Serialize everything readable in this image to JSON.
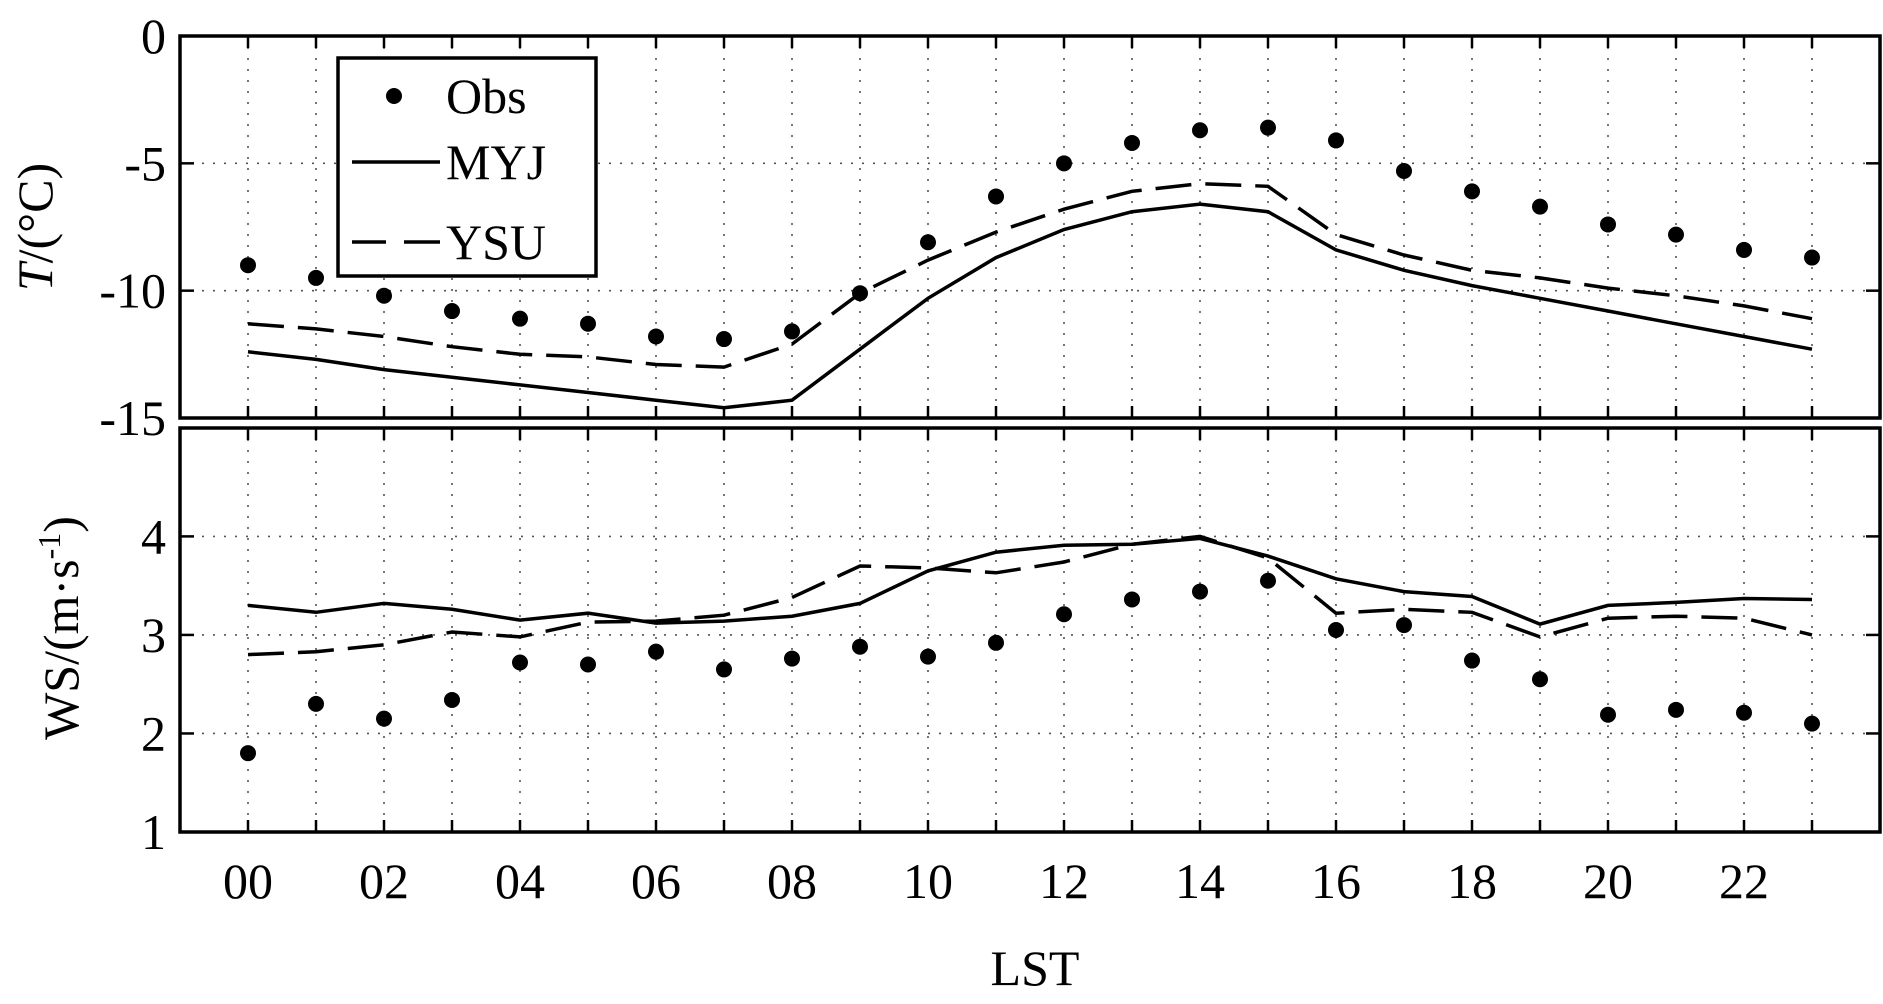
{
  "chart_data": [
    {
      "type": "line",
      "panel": "top",
      "ylabel_italic": "T",
      "ylabel_rest": "/(°C)",
      "xlabel": "",
      "ylim": [
        -15,
        0
      ],
      "yticks": [
        0,
        -5,
        -10,
        -15
      ],
      "ytick_labels": [
        "0",
        "-5",
        "-10",
        "-15"
      ],
      "grid": true,
      "legend_position": "top-left",
      "legend": [
        {
          "label": "Obs",
          "style": "dots"
        },
        {
          "label": "MYJ",
          "style": "solid"
        },
        {
          "label": "YSU",
          "style": "dashed"
        }
      ],
      "x": [
        0,
        1,
        2,
        3,
        4,
        5,
        6,
        7,
        8,
        9,
        10,
        11,
        12,
        13,
        14,
        15,
        16,
        17,
        18,
        19,
        20,
        21,
        22,
        23
      ],
      "series": [
        {
          "name": "Obs",
          "style": "dots",
          "values": [
            -9.0,
            -9.5,
            -10.2,
            -10.8,
            -11.1,
            -11.3,
            -11.8,
            -11.9,
            -11.6,
            -10.1,
            -8.1,
            -6.3,
            -5.0,
            -4.2,
            -3.7,
            -3.6,
            -4.1,
            -5.3,
            -6.1,
            -6.7,
            -7.4,
            -7.8,
            -8.4,
            -8.7
          ]
        },
        {
          "name": "MYJ",
          "style": "solid",
          "values": [
            -12.4,
            -12.7,
            -13.1,
            -13.4,
            -13.7,
            -14.0,
            -14.3,
            -14.6,
            -14.3,
            -12.3,
            -10.3,
            -8.7,
            -7.6,
            -6.9,
            -6.6,
            -6.9,
            -8.4,
            -9.2,
            -9.8,
            -10.3,
            -10.8,
            -11.3,
            -11.8,
            -12.3
          ]
        },
        {
          "name": "YSU",
          "style": "dashed",
          "values": [
            -11.3,
            -11.5,
            -11.8,
            -12.2,
            -12.5,
            -12.6,
            -12.9,
            -13.0,
            -12.1,
            -10.1,
            -8.8,
            -7.7,
            -6.8,
            -6.1,
            -5.8,
            -5.9,
            -7.8,
            -8.6,
            -9.2,
            -9.5,
            -9.9,
            -10.2,
            -10.6,
            -11.1
          ]
        }
      ]
    },
    {
      "type": "line",
      "panel": "bottom",
      "ylabel": "WS/(m·s",
      "ylabel_sup": "-1",
      "ylabel_tail": ")",
      "xlabel": "LST",
      "ylim": [
        1,
        5.1
      ],
      "yticks": [
        1,
        2,
        3,
        4
      ],
      "ytick_labels": [
        "1",
        "2",
        "3",
        "4"
      ],
      "x": [
        0,
        1,
        2,
        3,
        4,
        5,
        6,
        7,
        8,
        9,
        10,
        11,
        12,
        13,
        14,
        15,
        16,
        17,
        18,
        19,
        20,
        21,
        22,
        23
      ],
      "xticks": [
        0,
        2,
        4,
        6,
        8,
        10,
        12,
        14,
        16,
        18,
        20,
        22
      ],
      "xtick_labels": [
        "00",
        "02",
        "04",
        "06",
        "08",
        "10",
        "12",
        "14",
        "16",
        "18",
        "20",
        "22"
      ],
      "xlim": [
        -1,
        24
      ],
      "grid": true,
      "series": [
        {
          "name": "Obs",
          "style": "dots",
          "values": [
            1.8,
            2.3,
            2.15,
            2.34,
            2.72,
            2.7,
            2.83,
            2.65,
            2.76,
            2.88,
            2.78,
            2.92,
            3.21,
            3.36,
            3.44,
            3.55,
            3.05,
            3.1,
            2.74,
            2.55,
            2.19,
            2.24,
            2.21,
            2.1
          ]
        },
        {
          "name": "MYJ",
          "style": "solid",
          "values": [
            3.3,
            3.23,
            3.32,
            3.26,
            3.15,
            3.22,
            3.12,
            3.14,
            3.19,
            3.32,
            3.65,
            3.84,
            3.91,
            3.92,
            3.98,
            3.8,
            3.57,
            3.44,
            3.39,
            3.11,
            3.3,
            3.33,
            3.37,
            3.36
          ]
        },
        {
          "name": "YSU",
          "style": "dashed",
          "values": [
            2.8,
            2.83,
            2.9,
            3.03,
            2.98,
            3.13,
            3.14,
            3.2,
            3.38,
            3.7,
            3.68,
            3.63,
            3.74,
            3.92,
            4.0,
            3.78,
            3.22,
            3.26,
            3.23,
            2.98,
            3.17,
            3.19,
            3.17,
            3.0
          ]
        }
      ]
    }
  ]
}
